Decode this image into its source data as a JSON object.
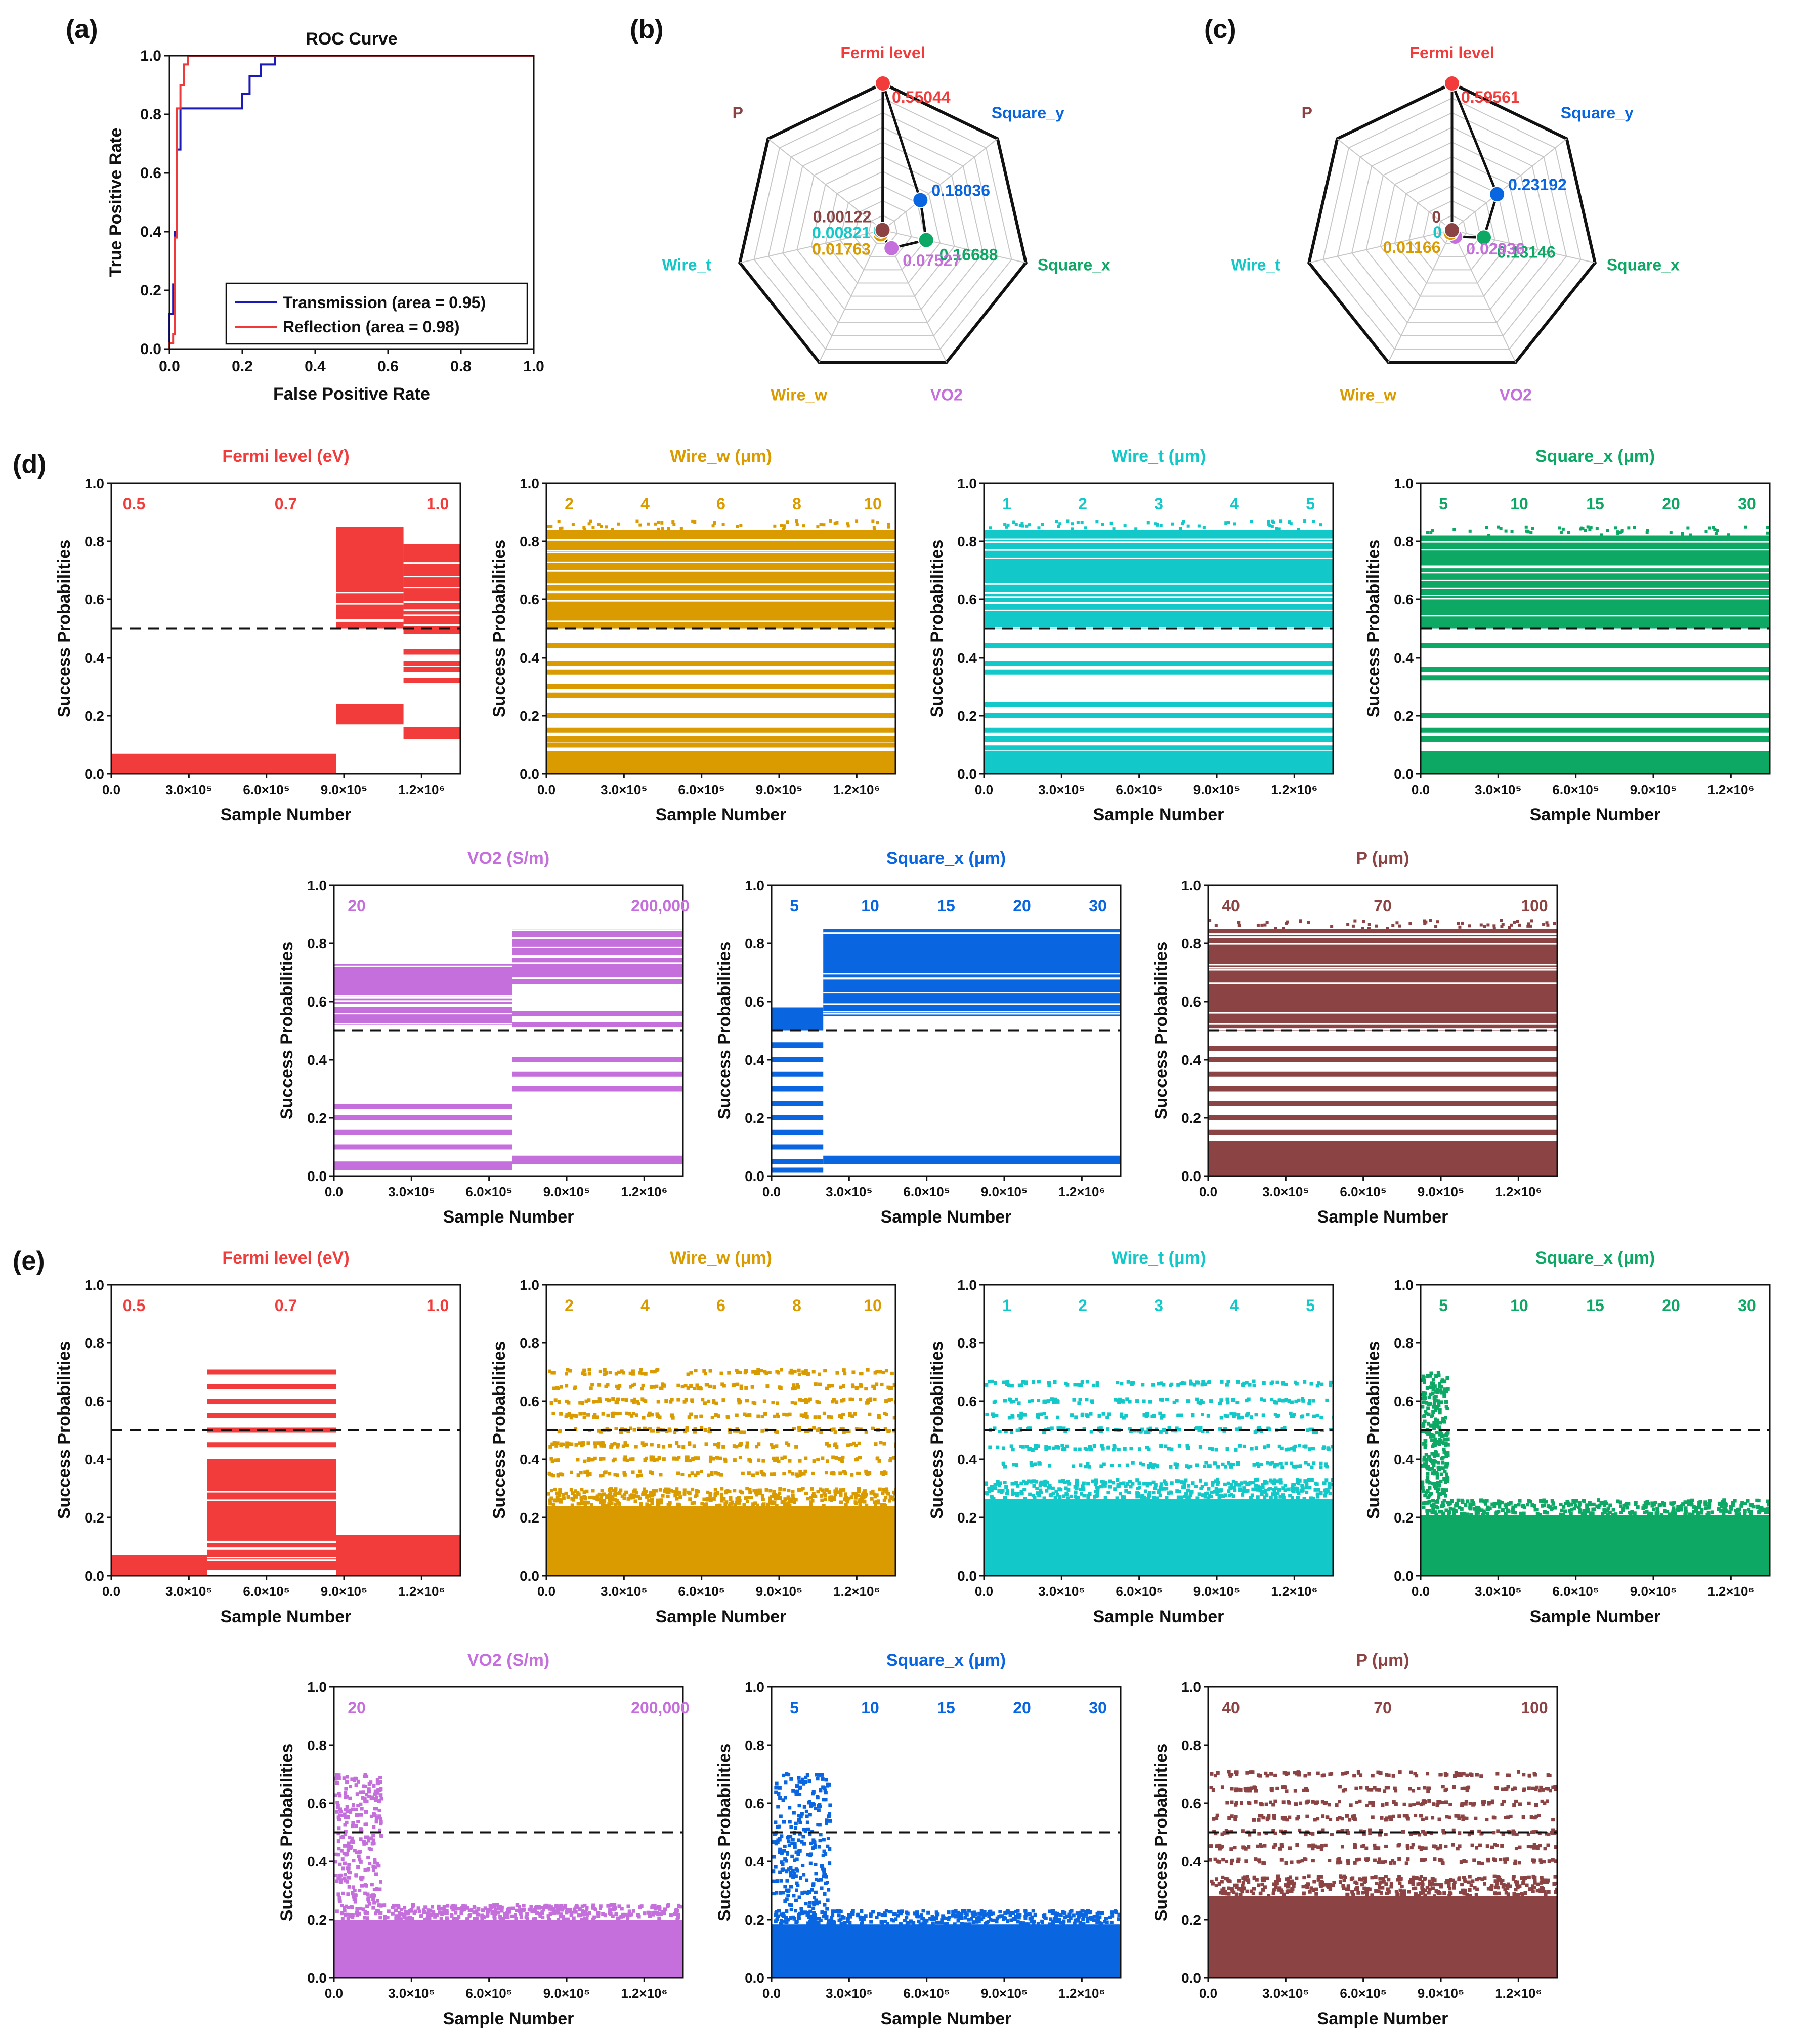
{
  "panel_labels": [
    "(a)",
    "(b)",
    "(c)",
    "(d)",
    "(e)"
  ],
  "colors": {
    "fermi": "#f23b3b",
    "wire_w": "#d99b00",
    "wire_t": "#12c8c8",
    "square_x_green": "#0ca864",
    "vo2": "#c46fdb",
    "square_x_blue": "#0a66e0",
    "p": "#8b4343",
    "roc_transmission": "#1a1ab8",
    "roc_reflection": "#ee3a3a"
  },
  "chart_data": [
    {
      "id": "a",
      "type": "line",
      "title": "ROC Curve",
      "xlabel": "False Positive Rate",
      "ylabel": "True Positive Rate",
      "xlim": [
        0,
        1.0
      ],
      "ylim": [
        0,
        1.0
      ],
      "xticks": [
        "0.0",
        "0.2",
        "0.4",
        "0.6",
        "0.8",
        "1.0"
      ],
      "yticks": [
        "0.0",
        "0.2",
        "0.4",
        "0.6",
        "0.8",
        "1.0"
      ],
      "legend": "bottom-right",
      "series": [
        {
          "name": "Transmission (area = 0.95)",
          "color": "#1a1ab8",
          "points": [
            [
              0,
              0
            ],
            [
              0,
              0.12
            ],
            [
              0.01,
              0.12
            ],
            [
              0.01,
              0.22
            ],
            [
              0.015,
              0.22
            ],
            [
              0.015,
              0.4
            ],
            [
              0.02,
              0.4
            ],
            [
              0.02,
              0.68
            ],
            [
              0.03,
              0.68
            ],
            [
              0.03,
              0.82
            ],
            [
              0.2,
              0.82
            ],
            [
              0.2,
              0.87
            ],
            [
              0.22,
              0.87
            ],
            [
              0.22,
              0.93
            ],
            [
              0.25,
              0.93
            ],
            [
              0.25,
              0.97
            ],
            [
              0.29,
              0.97
            ],
            [
              0.29,
              1.0
            ],
            [
              1.0,
              1.0
            ]
          ]
        },
        {
          "name": "Reflection (area = 0.98)",
          "color": "#ee3a3a",
          "points": [
            [
              0,
              0
            ],
            [
              0,
              0.02
            ],
            [
              0.01,
              0.02
            ],
            [
              0.01,
              0.05
            ],
            [
              0.015,
              0.05
            ],
            [
              0.015,
              0.38
            ],
            [
              0.02,
              0.38
            ],
            [
              0.02,
              0.82
            ],
            [
              0.03,
              0.82
            ],
            [
              0.03,
              0.9
            ],
            [
              0.04,
              0.9
            ],
            [
              0.04,
              0.97
            ],
            [
              0.05,
              0.97
            ],
            [
              0.05,
              1.0
            ],
            [
              1.0,
              1.0
            ]
          ]
        }
      ]
    },
    {
      "id": "b",
      "type": "radar",
      "max": 0.55,
      "axes": [
        "Fermi level",
        "Square_y",
        "Square_x",
        "VO2",
        "Wire_w",
        "Wire_t",
        "P"
      ],
      "values": [
        0.55044,
        0.18036,
        0.16688,
        0.07527,
        0.01763,
        0.00821,
        0.00122
      ],
      "labels": [
        "0.55044",
        "0.18036",
        "0.16688",
        "0.07527",
        "0.01763",
        "0.00821",
        "0.00122"
      ]
    },
    {
      "id": "c",
      "type": "radar",
      "max": 0.59,
      "axes": [
        "Fermi level",
        "Square_y",
        "Square_x",
        "VO2",
        "Wire_w",
        "Wire_t",
        "P"
      ],
      "values": [
        0.59561,
        0.23192,
        0.13146,
        0.02936,
        0.01166,
        0,
        0
      ],
      "labels": [
        "0.59561",
        "0.23192",
        "0.13146",
        "0.02936",
        "0.01166",
        "0",
        "0"
      ]
    },
    {
      "id": "d",
      "type": "scatter",
      "xlabel": "Sample Number",
      "ylabel": "Success Probabilities",
      "xticks": [
        "0.0",
        "3.0×10⁵",
        "6.0×10⁵",
        "9.0×10⁵",
        "1.2×10⁶"
      ],
      "xmax": 1350000,
      "threshold": 0.5,
      "subplots": [
        {
          "title": "Fermi level (eV)",
          "color": "#f23b3b",
          "categories": [
            "0.5",
            "0.7",
            "1.0"
          ],
          "segments": [
            {
              "x0": 0,
              "x1": 870000,
              "bands": [
                [
                  0,
                  0.07
                ]
              ]
            },
            {
              "x0": 870000,
              "x1": 1130000,
              "bands": [
                [
                  0.5,
                  0.85
                ],
                [
                  0.17,
                  0.24
                ]
              ],
              "lines": [
                0.55,
                0.6,
                0.7,
                0.75,
                0.8
              ]
            },
            {
              "x0": 1130000,
              "x1": 1390000,
              "bands": [
                [
                  0.48,
                  0.79
                ],
                [
                  0.12,
                  0.16
                ]
              ],
              "lines": [
                0.42,
                0.38,
                0.36,
                0.32
              ]
            }
          ]
        },
        {
          "title": "Wire_w (μm)",
          "color": "#d99b00",
          "categories": [
            "2",
            "4",
            "6",
            "8",
            "10"
          ],
          "dense": {
            "upper": [
              0.5,
              0.84
            ],
            "lower": [
              0.0,
              0.08
            ],
            "lines": [
              0.1,
              0.12,
              0.15,
              0.2,
              0.27,
              0.3,
              0.35,
              0.38,
              0.44
            ]
          }
        },
        {
          "title": "Wire_t (μm)",
          "color": "#12c8c8",
          "categories": [
            "1",
            "2",
            "3",
            "4",
            "5"
          ],
          "dense": {
            "upper": [
              0.5,
              0.84
            ],
            "lower": [
              0.0,
              0.08
            ],
            "lines": [
              0.09,
              0.12,
              0.15,
              0.2,
              0.24,
              0.35,
              0.38,
              0.44
            ]
          }
        },
        {
          "title": "Square_x (μm)",
          "color": "#0ca864",
          "categories": [
            "5",
            "10",
            "15",
            "20",
            "30"
          ],
          "dense": {
            "upper": [
              0.5,
              0.82
            ],
            "lower": [
              0.0,
              0.08
            ],
            "lines": [
              0.12,
              0.15,
              0.2,
              0.33,
              0.36,
              0.44
            ]
          }
        },
        {
          "title": "VO2 (S/m)",
          "color": "#c46fdb",
          "categories": [
            "20",
            "",
            "",
            "",
            "200,000"
          ],
          "segments": [
            {
              "x0": 0,
              "x1": 690000,
              "bands": [
                [
                  0.52,
                  0.73
                ],
                [
                  0.02,
                  0.05
                ]
              ],
              "lines": [
                0.1,
                0.15,
                0.2,
                0.24
              ]
            },
            {
              "x0": 690000,
              "x1": 1390000,
              "bands": [
                [
                  0.66,
                  0.85
                ],
                [
                  0.04,
                  0.07
                ]
              ],
              "lines": [
                0.3,
                0.35,
                0.4,
                0.52,
                0.56
              ]
            }
          ]
        },
        {
          "title": "Square_x (μm)",
          "color": "#0a66e0",
          "categories": [
            "5",
            "10",
            "15",
            "20",
            "30"
          ],
          "segments": [
            {
              "x0": 0,
              "x1": 200000,
              "bands": [
                [
                  0.5,
                  0.58
                ]
              ],
              "lines": [
                0.02,
                0.05,
                0.1,
                0.15,
                0.2,
                0.25,
                0.3,
                0.35,
                0.4,
                0.45
              ]
            },
            {
              "x0": 200000,
              "x1": 1390000,
              "bands": [
                [
                  0.55,
                  0.85
                ],
                [
                  0.04,
                  0.07
                ]
              ]
            }
          ]
        },
        {
          "title": "P (μm)",
          "color": "#8b4343",
          "categories": [
            "40",
            "70",
            "100"
          ],
          "dense": {
            "upper": [
              0.5,
              0.85
            ],
            "lower": [
              0.0,
              0.12
            ],
            "lines": [
              0.15,
              0.2,
              0.25,
              0.3,
              0.35,
              0.4,
              0.44
            ]
          }
        }
      ]
    },
    {
      "id": "e",
      "type": "scatter",
      "xlabel": "Sample Number",
      "ylabel": "Success Probabilities",
      "xticks": [
        "0.0",
        "3.0×10⁵",
        "6.0×10⁵",
        "9.0×10⁵",
        "1.2×10⁶"
      ],
      "xmax": 1350000,
      "threshold": 0.5,
      "subplots": [
        {
          "title": "Fermi level (eV)",
          "color": "#f23b3b",
          "categories": [
            "0.5",
            "0.7",
            "1.0"
          ],
          "segments": [
            {
              "x0": 0,
              "x1": 370000,
              "bands": [
                [
                  0,
                  0.07
                ]
              ]
            },
            {
              "x0": 370000,
              "x1": 870000,
              "bands": [
                [
                  0.02,
                  0.4
                ]
              ],
              "lines": [
                0.45,
                0.5,
                0.55,
                0.6,
                0.65,
                0.7
              ]
            },
            {
              "x0": 870000,
              "x1": 1390000,
              "bands": [
                [
                  0.0,
                  0.14
                ]
              ]
            }
          ]
        },
        {
          "title": "Wire_w (μm)",
          "color": "#d99b00",
          "categories": [
            "2",
            "4",
            "6",
            "8",
            "10"
          ],
          "sparse": {
            "body": [
              0.0,
              0.3
            ],
            "lines": [
              0.35,
              0.4,
              0.45,
              0.5,
              0.55,
              0.6,
              0.65,
              0.7
            ]
          }
        },
        {
          "title": "Wire_t (μm)",
          "color": "#12c8c8",
          "categories": [
            "1",
            "2",
            "3",
            "4",
            "5"
          ],
          "sparse": {
            "body": [
              0.0,
              0.33
            ],
            "lines": [
              0.38,
              0.44,
              0.5,
              0.55,
              0.6,
              0.66
            ]
          }
        },
        {
          "title": "Square_x (μm)",
          "color": "#0ca864",
          "categories": [
            "5",
            "10",
            "15",
            "20",
            "30"
          ],
          "sparse": {
            "body": [
              0.0,
              0.26
            ],
            "lines": [],
            "spike": [
              0,
              100000,
              0.7
            ]
          }
        },
        {
          "title": "VO2 (S/m)",
          "color": "#c46fdb",
          "categories": [
            "20",
            "",
            "",
            "",
            "200,000"
          ],
          "sparse": {
            "body": [
              0.0,
              0.25
            ],
            "lines": [],
            "spike": [
              0,
              180000,
              0.7
            ]
          }
        },
        {
          "title": "Square_x (μm)",
          "color": "#0a66e0",
          "categories": [
            "5",
            "10",
            "15",
            "20",
            "30"
          ],
          "sparse": {
            "body": [
              0.0,
              0.23
            ],
            "lines": [],
            "spike": [
              0,
              220000,
              0.7
            ]
          }
        },
        {
          "title": "P (μm)",
          "color": "#8b4343",
          "categories": [
            "40",
            "70",
            "100"
          ],
          "sparse": {
            "body": [
              0.0,
              0.35
            ],
            "lines": [
              0.4,
              0.45,
              0.5,
              0.55,
              0.6,
              0.65,
              0.7
            ]
          }
        }
      ]
    }
  ]
}
